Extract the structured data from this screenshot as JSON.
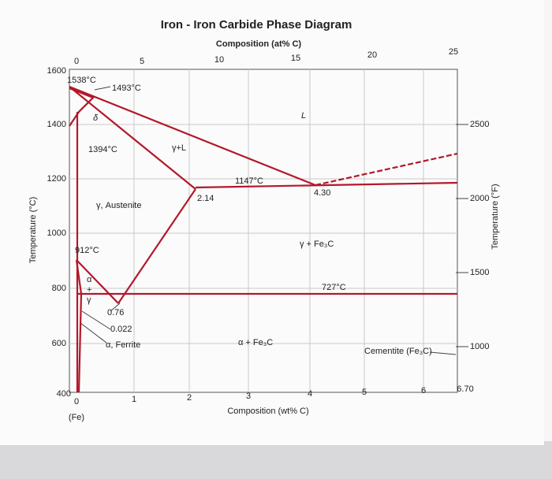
{
  "title": "Iron - Iron Carbide Phase Diagram",
  "top_axis": {
    "label": "Composition (at% C)",
    "ticks": [
      "0",
      "5",
      "10",
      "15",
      "20",
      "25"
    ]
  },
  "bottom_axis": {
    "label": "Composition (wt% C)",
    "ticks": [
      "0",
      "1",
      "2",
      "3",
      "4",
      "5",
      "6",
      "6.70"
    ],
    "sublabel": "(Fe)"
  },
  "left_axis": {
    "label": "Temperature (°C)",
    "ticks": [
      "1600",
      "1400",
      "1200",
      "1000",
      "800",
      "600",
      "400"
    ]
  },
  "right_axis": {
    "label": "Temperature (°F)",
    "ticks": [
      "2500",
      "2000",
      "1500",
      "1000"
    ]
  },
  "annotations": [
    "1538°C",
    "1493°C",
    "δ",
    "1394°C",
    "γ+L",
    "L",
    "1147°C",
    "2.14",
    "4.30",
    "γ, Austenite",
    "912°C",
    "γ + Fe₃C",
    "727°C",
    "α",
    "+",
    "γ",
    "0.76",
    "0.022",
    "α, Ferrite",
    "α + Fe₃C",
    "Cementite (Fe₃C)"
  ]
}
